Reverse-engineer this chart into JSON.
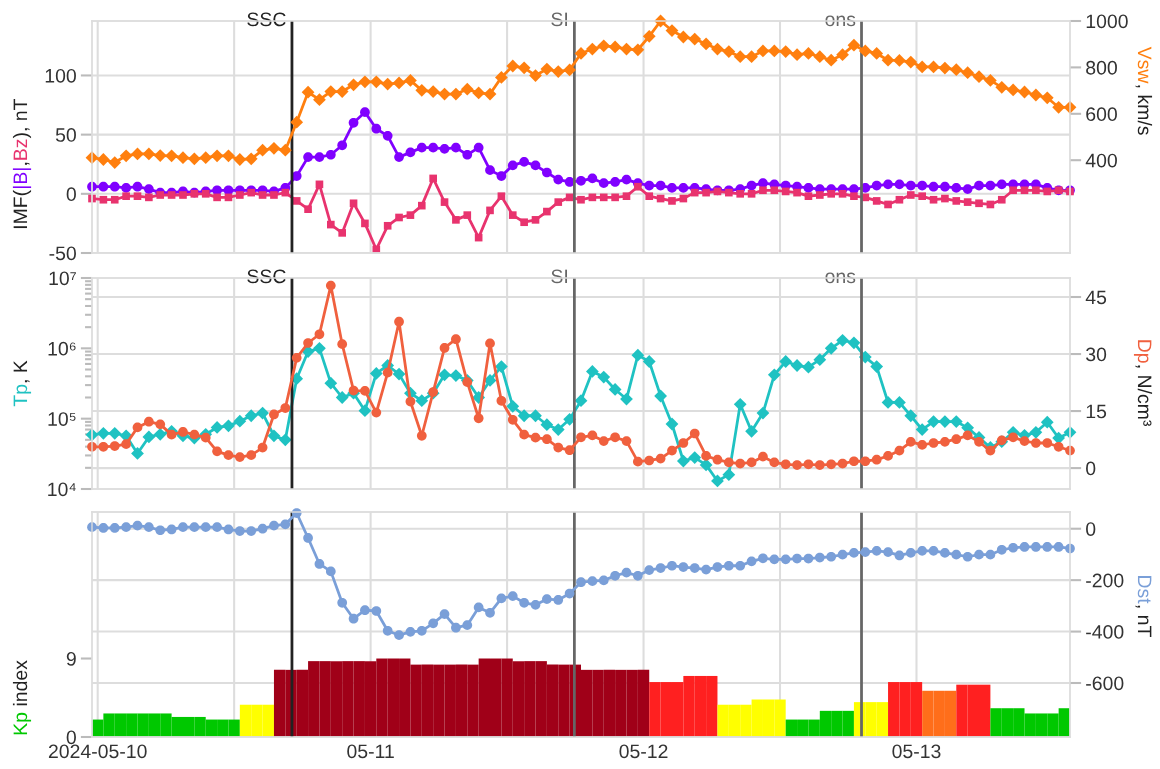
{
  "chart_data": [
    {
      "type": "line",
      "x": [
        "2024-05-09T23:30",
        "2024-05-10T00:30",
        "2024-05-10T01:30",
        "2024-05-10T02:30",
        "2024-05-10T03:30",
        "2024-05-10T04:30",
        "2024-05-10T05:30",
        "2024-05-10T06:30",
        "2024-05-10T07:30",
        "2024-05-10T08:30",
        "2024-05-10T09:30",
        "2024-05-10T10:30",
        "2024-05-10T11:30",
        "2024-05-10T12:30",
        "2024-05-10T13:30",
        "2024-05-10T14:30",
        "2024-05-10T15:30",
        "2024-05-10T16:30",
        "2024-05-10T17:30",
        "2024-05-10T18:30",
        "2024-05-10T19:30",
        "2024-05-10T20:30",
        "2024-05-10T21:30",
        "2024-05-10T22:30",
        "2024-05-10T23:30",
        "2024-05-11T00:30",
        "2024-05-11T01:30",
        "2024-05-11T02:30",
        "2024-05-11T03:30",
        "2024-05-11T04:30",
        "2024-05-11T05:30",
        "2024-05-11T06:30",
        "2024-05-11T07:30",
        "2024-05-11T08:30",
        "2024-05-11T09:30",
        "2024-05-11T10:30",
        "2024-05-11T11:30",
        "2024-05-11T12:30",
        "2024-05-11T13:30",
        "2024-05-11T14:30",
        "2024-05-11T15:30",
        "2024-05-11T16:30",
        "2024-05-11T17:30",
        "2024-05-11T18:30",
        "2024-05-11T19:30",
        "2024-05-11T20:30",
        "2024-05-11T21:30",
        "2024-05-11T22:30",
        "2024-05-11T23:30",
        "2024-05-12T00:30",
        "2024-05-12T01:30",
        "2024-05-12T02:30",
        "2024-05-12T03:30",
        "2024-05-12T04:30",
        "2024-05-12T05:30",
        "2024-05-12T06:30",
        "2024-05-12T07:30",
        "2024-05-12T08:30",
        "2024-05-12T09:30",
        "2024-05-12T10:30",
        "2024-05-12T11:30",
        "2024-05-12T12:30",
        "2024-05-12T13:30",
        "2024-05-12T14:30",
        "2024-05-12T15:30",
        "2024-05-12T16:30",
        "2024-05-12T17:30",
        "2024-05-12T18:30",
        "2024-05-12T19:30",
        "2024-05-12T20:30",
        "2024-05-12T21:30",
        "2024-05-12T22:30",
        "2024-05-12T23:30",
        "2024-05-13T00:30",
        "2024-05-13T01:30",
        "2024-05-13T02:30",
        "2024-05-13T03:30",
        "2024-05-13T04:30",
        "2024-05-13T05:30",
        "2024-05-13T06:30",
        "2024-05-13T07:30",
        "2024-05-13T08:30",
        "2024-05-13T09:30",
        "2024-05-13T10:30",
        "2024-05-13T11:30",
        "2024-05-13T12:30",
        "2024-05-13T13:30"
      ],
      "xlim": [
        "2024-05-09T23:30",
        "2024-05-13T13:30"
      ],
      "xticks": [
        "2024-05-10",
        "2024-05-10T12:00",
        "2024-05-11",
        "2024-05-11T12:00",
        "2024-05-12",
        "2024-05-12T12:00",
        "2024-05-13"
      ],
      "ylabel": [
        "IMF(",
        null,
        ",",
        null,
        "), nT"
      ],
      "y2label": [
        null,
        ", km/s"
      ],
      "ylim": [
        -50,
        146
      ],
      "yticks": [
        -50,
        0,
        50,
        100
      ],
      "y2lim": [
        0,
        1000
      ],
      "y2ticks": [
        400,
        600,
        800,
        1000
      ],
      "grid": [
        "x",
        "y"
      ],
      "tick_labels": "y",
      "ref_lines": [
        {
          "axis": "x",
          "value": "2024-05-10T17:05",
          "label": "SSC",
          "color": "#222222"
        },
        {
          "axis": "x",
          "value": "2024-05-11T17:55",
          "label": "SI",
          "color": "#666666"
        },
        {
          "axis": "x",
          "value": "2024-05-12T19:10",
          "label": "ons",
          "color": "#666666"
        }
      ],
      "series": [
        {
          "name": "|B|",
          "color": "#8000ff",
          "marker": "circle",
          "values": [
            6,
            6,
            6,
            5,
            6,
            4,
            1,
            1,
            2,
            1,
            2,
            3,
            3,
            3,
            3,
            3,
            2,
            5,
            15,
            31,
            31,
            33,
            41,
            60,
            69,
            55,
            49,
            31,
            35,
            39,
            39,
            38,
            39,
            33,
            39,
            20,
            15,
            24,
            27,
            24,
            18,
            12,
            10,
            11,
            13,
            9,
            10,
            12,
            9,
            7,
            7,
            5,
            5,
            5,
            4,
            3,
            3,
            4,
            7,
            9,
            8,
            7,
            6,
            5,
            4,
            4,
            4,
            4,
            5,
            7,
            8,
            8,
            7,
            7,
            6,
            6,
            5,
            4,
            7,
            7,
            8,
            8,
            8,
            8,
            5,
            3,
            3
          ]
        },
        {
          "name": "Bz",
          "color": "#e8336e",
          "marker": "square",
          "values": [
            -4,
            -5,
            -5,
            -2,
            -2,
            -3,
            -1,
            -1,
            -1,
            0,
            0,
            -3,
            -3,
            -1,
            1,
            -1,
            -1,
            1,
            -6,
            -13,
            8,
            -26,
            -33,
            -8,
            -25,
            -47,
            -27,
            -20,
            -18,
            -10,
            13,
            -7,
            -22,
            -18,
            -37,
            -14,
            -2,
            -18,
            -24,
            -22,
            -15,
            -7,
            -3,
            -5,
            -3,
            -3,
            -3,
            -2,
            6,
            -2,
            -4,
            -6,
            -4,
            1,
            1,
            2,
            1,
            0,
            0,
            3,
            3,
            2,
            1,
            -2,
            -1,
            0,
            0,
            -2,
            -3,
            -6,
            -9,
            -5,
            -1,
            -2,
            -5,
            -4,
            -6,
            -7,
            -8,
            -9,
            -5,
            3,
            3,
            3,
            2,
            3,
            2
          ]
        },
        {
          "name": "Vsw",
          "color": "#ff7f0e",
          "marker": "diamond",
          "axis": "y2",
          "values": [
            411,
            403,
            390,
            419,
            427,
            427,
            420,
            419,
            411,
            406,
            411,
            419,
            419,
            403,
            406,
            443,
            451,
            443,
            564,
            693,
            661,
            696,
            696,
            725,
            738,
            738,
            728,
            733,
            744,
            701,
            696,
            685,
            685,
            706,
            690,
            685,
            757,
            806,
            798,
            765,
            793,
            782,
            789,
            860,
            879,
            893,
            888,
            879,
            876,
            934,
            1000,
            959,
            931,
            922,
            901,
            879,
            868,
            846,
            846,
            871,
            871,
            868,
            855,
            860,
            846,
            831,
            855,
            896,
            871,
            860,
            831,
            830,
            823,
            802,
            802,
            797,
            790,
            777,
            760,
            744,
            714,
            703,
            694,
            681,
            669,
            628,
            628
          ]
        }
      ]
    },
    {
      "type": "line",
      "x": [
        "2024-05-09T23:30",
        "2024-05-10T00:30",
        "2024-05-10T01:30",
        "2024-05-10T02:30",
        "2024-05-10T03:30",
        "2024-05-10T04:30",
        "2024-05-10T05:30",
        "2024-05-10T06:30",
        "2024-05-10T07:30",
        "2024-05-10T08:30",
        "2024-05-10T09:30",
        "2024-05-10T10:30",
        "2024-05-10T11:30",
        "2024-05-10T12:30",
        "2024-05-10T13:30",
        "2024-05-10T14:30",
        "2024-05-10T15:30",
        "2024-05-10T16:30",
        "2024-05-10T17:30",
        "2024-05-10T18:30",
        "2024-05-10T19:30",
        "2024-05-10T20:30",
        "2024-05-10T21:30",
        "2024-05-10T22:30",
        "2024-05-10T23:30",
        "2024-05-11T00:30",
        "2024-05-11T01:30",
        "2024-05-11T02:30",
        "2024-05-11T03:30",
        "2024-05-11T04:30",
        "2024-05-11T05:30",
        "2024-05-11T06:30",
        "2024-05-11T07:30",
        "2024-05-11T08:30",
        "2024-05-11T09:30",
        "2024-05-11T10:30",
        "2024-05-11T11:30",
        "2024-05-11T12:30",
        "2024-05-11T13:30",
        "2024-05-11T14:30",
        "2024-05-11T15:30",
        "2024-05-11T16:30",
        "2024-05-11T17:30",
        "2024-05-11T18:30",
        "2024-05-11T19:30",
        "2024-05-11T20:30",
        "2024-05-11T21:30",
        "2024-05-11T22:30",
        "2024-05-11T23:30",
        "2024-05-12T00:30",
        "2024-05-12T01:30",
        "2024-05-12T02:30",
        "2024-05-12T03:30",
        "2024-05-12T04:30",
        "2024-05-12T05:30",
        "2024-05-12T06:30",
        "2024-05-12T07:30",
        "2024-05-12T08:30",
        "2024-05-12T09:30",
        "2024-05-12T10:30",
        "2024-05-12T11:30",
        "2024-05-12T12:30",
        "2024-05-12T13:30",
        "2024-05-12T14:30",
        "2024-05-12T15:30",
        "2024-05-12T16:30",
        "2024-05-12T17:30",
        "2024-05-12T18:30",
        "2024-05-12T19:30",
        "2024-05-12T20:30",
        "2024-05-12T21:30",
        "2024-05-12T22:30",
        "2024-05-12T23:30",
        "2024-05-13T00:30",
        "2024-05-13T01:30",
        "2024-05-13T02:30",
        "2024-05-13T03:30",
        "2024-05-13T04:30",
        "2024-05-13T05:30",
        "2024-05-13T06:30",
        "2024-05-13T07:30",
        "2024-05-13T08:30",
        "2024-05-13T09:30",
        "2024-05-13T10:30",
        "2024-05-13T11:30",
        "2024-05-13T12:30",
        "2024-05-13T13:30"
      ],
      "xlim": [
        "2024-05-09T23:30",
        "2024-05-13T13:30"
      ],
      "xticks": [
        "2024-05-10",
        "2024-05-10T12:00",
        "2024-05-11",
        "2024-05-11T12:00",
        "2024-05-12",
        "2024-05-12T12:00",
        "2024-05-13"
      ],
      "ylabel": [
        null,
        ", K"
      ],
      "y2label": [
        null,
        ", N/cm³"
      ],
      "log": "y",
      "ylim": [
        10000,
        10000000
      ],
      "yticks": [
        {
          "value": 10000,
          "label": "10⁴"
        },
        {
          "value": 100000,
          "label": "10⁵"
        },
        {
          "value": 1000000,
          "label": "10⁶"
        },
        {
          "value": 10000000,
          "label": "10⁷"
        }
      ],
      "y2lim": [
        -5.5,
        50
      ],
      "y2ticks": [
        0,
        15,
        30,
        45
      ],
      "grid": [
        "x",
        "y2"
      ],
      "tick_labels": "y",
      "ref_lines": [
        {
          "axis": "x",
          "value": "2024-05-10T17:05",
          "label": "SSC",
          "color": "#222222"
        },
        {
          "axis": "x",
          "value": "2024-05-11T17:55",
          "label": "SI",
          "color": "#666666"
        },
        {
          "axis": "x",
          "value": "2024-05-12T19:10",
          "label": "ons",
          "color": "#666666"
        }
      ],
      "series": [
        {
          "name": "Tp",
          "color": "#1fc2c2",
          "marker": "diamond",
          "values": [
            59000,
            62000,
            62000,
            57000,
            32000,
            55000,
            60000,
            66000,
            57000,
            53000,
            60000,
            75000,
            79000,
            92000,
            110000,
            120000,
            57000,
            50000,
            370000,
            900000,
            1000000,
            320000,
            200000,
            230000,
            130000,
            440000,
            570000,
            430000,
            230000,
            180000,
            230000,
            420000,
            410000,
            350000,
            200000,
            350000,
            550000,
            150000,
            110000,
            110000,
            82000,
            70000,
            98000,
            180000,
            470000,
            390000,
            260000,
            190000,
            800000,
            650000,
            210000,
            84000,
            25000,
            28000,
            22000,
            13000,
            16000,
            160000,
            66000,
            120000,
            420000,
            650000,
            570000,
            540000,
            690000,
            1000000,
            1300000,
            1200000,
            750000,
            550000,
            170000,
            170000,
            110000,
            70000,
            91000,
            91000,
            91000,
            74000,
            54000,
            39000,
            47000,
            64000,
            58000,
            64000,
            89000,
            53000,
            64000
          ]
        },
        {
          "name": "Dp",
          "color": "#f0603e",
          "marker": "circle",
          "axis": "y2",
          "values": [
            5.6,
            5.6,
            5.8,
            6.3,
            10.7,
            12.2,
            11.5,
            8.8,
            9.5,
            8.8,
            8,
            4.4,
            3.4,
            2.9,
            3.4,
            5.4,
            14.1,
            15.8,
            29,
            32.9,
            35.2,
            48,
            32.6,
            20.4,
            20.3,
            14.6,
            25.1,
            38.5,
            17.5,
            8.5,
            20,
            31.6,
            33.9,
            22.6,
            13.1,
            32.8,
            17.7,
            12.7,
            8.8,
            8,
            7.6,
            5.4,
            4.7,
            8.1,
            8.6,
            7.1,
            8.1,
            7.1,
            1.7,
            2,
            2.5,
            4.6,
            6.6,
            9.1,
            3.2,
            2.2,
            1.5,
            1.2,
            1.5,
            3,
            1.5,
            1,
            0.8,
            1,
            0.8,
            1,
            1.2,
            1.8,
            1.8,
            2.2,
            3.2,
            4.6,
            6.9,
            6.1,
            6.6,
            6.9,
            7.6,
            8.6,
            6.9,
            4.6,
            7.3,
            8.1,
            7.1,
            6.6,
            6.6,
            5.6,
            4.6
          ]
        }
      ]
    },
    {
      "type": "line",
      "x": [
        "2024-05-09T23:30",
        "2024-05-10T00:30",
        "2024-05-10T01:30",
        "2024-05-10T02:30",
        "2024-05-10T03:30",
        "2024-05-10T04:30",
        "2024-05-10T05:30",
        "2024-05-10T06:30",
        "2024-05-10T07:30",
        "2024-05-10T08:30",
        "2024-05-10T09:30",
        "2024-05-10T10:30",
        "2024-05-10T11:30",
        "2024-05-10T12:30",
        "2024-05-10T13:30",
        "2024-05-10T14:30",
        "2024-05-10T15:30",
        "2024-05-10T16:30",
        "2024-05-10T17:30",
        "2024-05-10T18:30",
        "2024-05-10T19:30",
        "2024-05-10T20:30",
        "2024-05-10T21:30",
        "2024-05-10T22:30",
        "2024-05-10T23:30",
        "2024-05-11T00:30",
        "2024-05-11T01:30",
        "2024-05-11T02:30",
        "2024-05-11T03:30",
        "2024-05-11T04:30",
        "2024-05-11T05:30",
        "2024-05-11T06:30",
        "2024-05-11T07:30",
        "2024-05-11T08:30",
        "2024-05-11T09:30",
        "2024-05-11T10:30",
        "2024-05-11T11:30",
        "2024-05-11T12:30",
        "2024-05-11T13:30",
        "2024-05-11T14:30",
        "2024-05-11T15:30",
        "2024-05-11T16:30",
        "2024-05-11T17:30",
        "2024-05-11T18:30",
        "2024-05-11T19:30",
        "2024-05-11T20:30",
        "2024-05-11T21:30",
        "2024-05-11T22:30",
        "2024-05-11T23:30",
        "2024-05-12T00:30",
        "2024-05-12T01:30",
        "2024-05-12T02:30",
        "2024-05-12T03:30",
        "2024-05-12T04:30",
        "2024-05-12T05:30",
        "2024-05-12T06:30",
        "2024-05-12T07:30",
        "2024-05-12T08:30",
        "2024-05-12T09:30",
        "2024-05-12T10:30",
        "2024-05-12T11:30",
        "2024-05-12T12:30",
        "2024-05-12T13:30",
        "2024-05-12T14:30",
        "2024-05-12T15:30",
        "2024-05-12T16:30",
        "2024-05-12T17:30",
        "2024-05-12T18:30",
        "2024-05-12T19:30",
        "2024-05-12T20:30",
        "2024-05-12T21:30",
        "2024-05-12T22:30",
        "2024-05-12T23:30",
        "2024-05-13T00:30",
        "2024-05-13T01:30",
        "2024-05-13T02:30",
        "2024-05-13T03:30",
        "2024-05-13T04:30",
        "2024-05-13T05:30",
        "2024-05-13T06:30",
        "2024-05-13T07:30",
        "2024-05-13T08:30",
        "2024-05-13T09:30",
        "2024-05-13T10:30",
        "2024-05-13T11:30",
        "2024-05-13T12:30",
        "2024-05-13T13:30"
      ],
      "xlim": [
        "2024-05-09T23:30",
        "2024-05-13T13:30"
      ],
      "xticks": [
        {
          "value": "2024-05-10",
          "label": "2024-05-10"
        },
        {
          "value": "2024-05-10T12:00",
          "label": null
        },
        {
          "value": "2024-05-11",
          "label": "05-11"
        },
        {
          "value": "2024-05-11T12:00",
          "label": null
        },
        {
          "value": "2024-05-12",
          "label": "05-12"
        },
        {
          "value": "2024-05-12T12:00",
          "label": null
        },
        {
          "value": "2024-05-13",
          "label": "05-13"
        }
      ],
      "ylabel": [
        null,
        " index"
      ],
      "y2label": [
        null,
        ", nT"
      ],
      "ylim": [
        0,
        25.8
      ],
      "yticks": [
        0,
        9
      ],
      "y2lim": [
        -810,
        65
      ],
      "y2ticks": [
        -600,
        -400,
        -200,
        0
      ],
      "grid": [
        "x",
        "y2"
      ],
      "ref_lines": [
        {
          "axis": "x",
          "value": "2024-05-10T17:05",
          "color": "#222222"
        },
        {
          "axis": "x",
          "value": "2024-05-11T17:55",
          "color": "#666666"
        },
        {
          "axis": "x",
          "value": "2024-05-12T19:10",
          "color": "#666666"
        }
      ],
      "series": [
        {
          "name": "Kp",
          "type": "bar",
          "x": [
            "2024-05-10T00:00",
            "2024-05-10T01:00",
            "2024-05-10T02:00",
            "2024-05-10T03:00",
            "2024-05-10T04:00",
            "2024-05-10T05:00",
            "2024-05-10T06:00",
            "2024-05-10T07:00",
            "2024-05-10T08:00",
            "2024-05-10T09:00",
            "2024-05-10T10:00",
            "2024-05-10T11:00",
            "2024-05-10T12:00",
            "2024-05-10T13:00",
            "2024-05-10T14:00",
            "2024-05-10T15:00",
            "2024-05-10T16:00",
            "2024-05-10T17:00",
            "2024-05-10T18:00",
            "2024-05-10T19:00",
            "2024-05-10T20:00",
            "2024-05-10T21:00",
            "2024-05-10T22:00",
            "2024-05-10T23:00",
            "2024-05-11T00:00",
            "2024-05-11T01:00",
            "2024-05-11T02:00",
            "2024-05-11T03:00",
            "2024-05-11T04:00",
            "2024-05-11T05:00",
            "2024-05-11T06:00",
            "2024-05-11T07:00",
            "2024-05-11T08:00",
            "2024-05-11T09:00",
            "2024-05-11T10:00",
            "2024-05-11T11:00",
            "2024-05-11T12:00",
            "2024-05-11T13:00",
            "2024-05-11T14:00",
            "2024-05-11T15:00",
            "2024-05-11T16:00",
            "2024-05-11T17:00",
            "2024-05-11T18:00",
            "2024-05-11T19:00",
            "2024-05-11T20:00",
            "2024-05-11T21:00",
            "2024-05-11T22:00",
            "2024-05-11T23:00",
            "2024-05-12T00:00",
            "2024-05-12T01:00",
            "2024-05-12T02:00",
            "2024-05-12T03:00",
            "2024-05-12T04:00",
            "2024-05-12T05:00",
            "2024-05-12T06:00",
            "2024-05-12T07:00",
            "2024-05-12T08:00",
            "2024-05-12T09:00",
            "2024-05-12T10:00",
            "2024-05-12T11:00",
            "2024-05-12T12:00",
            "2024-05-12T13:00",
            "2024-05-12T14:00",
            "2024-05-12T15:00",
            "2024-05-12T16:00",
            "2024-05-12T17:00",
            "2024-05-12T18:00",
            "2024-05-12T19:00",
            "2024-05-12T20:00",
            "2024-05-12T21:00",
            "2024-05-12T22:00",
            "2024-05-12T23:00",
            "2024-05-13T00:00",
            "2024-05-13T01:00",
            "2024-05-13T02:00",
            "2024-05-13T03:00",
            "2024-05-13T04:00",
            "2024-05-13T05:00",
            "2024-05-13T06:00",
            "2024-05-13T07:00",
            "2024-05-13T08:00",
            "2024-05-13T09:00",
            "2024-05-13T10:00",
            "2024-05-13T11:00",
            "2024-05-13T12:00",
            "2024-05-13T13:00"
          ],
          "values": [
            2,
            2.7,
            2.7,
            2.7,
            2.7,
            2.7,
            2.7,
            2.3,
            2.3,
            2.3,
            2,
            2,
            2,
            3.7,
            3.7,
            3.7,
            7.7,
            7.7,
            7.7,
            8.7,
            8.7,
            8.7,
            8.7,
            8.7,
            8.7,
            9,
            9,
            9,
            8.3,
            8.3,
            8.3,
            8.3,
            8.3,
            8.3,
            9,
            9,
            9,
            8.7,
            8.7,
            8.7,
            8.3,
            8.3,
            8.3,
            7.7,
            7.7,
            7.7,
            7.7,
            7.7,
            7.7,
            6.3,
            6.3,
            6.3,
            7,
            7,
            7,
            3.7,
            3.7,
            3.7,
            4.3,
            4.3,
            4.3,
            2,
            2,
            2,
            3,
            3,
            3,
            4,
            4,
            4,
            6.3,
            6.3,
            6.3,
            5.3,
            5.3,
            5.3,
            6,
            6,
            6,
            3.3,
            3.3,
            3.3,
            2.7,
            2.7,
            2.7,
            3.3
          ],
          "colors": [
            "#00c800",
            "#00c800",
            "#00c800",
            "#00c800",
            "#00c800",
            "#00c800",
            "#00c800",
            "#00c800",
            "#00c800",
            "#00c800",
            "#00c800",
            "#00c800",
            "#00c800",
            "#ffff00",
            "#ffff00",
            "#ffff00",
            "#a00018",
            "#a00018",
            "#a00018",
            "#a00018",
            "#a00018",
            "#a00018",
            "#a00018",
            "#a00018",
            "#a00018",
            "#a00018",
            "#a00018",
            "#a00018",
            "#a00018",
            "#a00018",
            "#a00018",
            "#a00018",
            "#a00018",
            "#a00018",
            "#a00018",
            "#a00018",
            "#a00018",
            "#a00018",
            "#a00018",
            "#a00018",
            "#a00018",
            "#a00018",
            "#a00018",
            "#a00018",
            "#a00018",
            "#a00018",
            "#a00018",
            "#a00018",
            "#a00018",
            "#ff2020",
            "#ff2020",
            "#ff2020",
            "#ff2020",
            "#ff2020",
            "#ff2020",
            "#ffff00",
            "#ffff00",
            "#ffff00",
            "#ffff00",
            "#ffff00",
            "#ffff00",
            "#00c800",
            "#00c800",
            "#00c800",
            "#00c800",
            "#00c800",
            "#00c800",
            "#ffff00",
            "#ffff00",
            "#ffff00",
            "#ff2020",
            "#ff2020",
            "#ff2020",
            "#ff6e1a",
            "#ff6e1a",
            "#ff6e1a",
            "#ff2020",
            "#ff2020",
            "#ff2020",
            "#00c800",
            "#00c800",
            "#00c800",
            "#00c800",
            "#00c800",
            "#00c800",
            "#00c800"
          ]
        },
        {
          "name": "Dst",
          "type": "line",
          "color": "#7a9fd8",
          "marker": "circle",
          "axis": "y2",
          "values": [
            6,
            3,
            3,
            6,
            12,
            6,
            -6,
            -3,
            6,
            6,
            6,
            6,
            -3,
            -9,
            -9,
            0,
            12,
            17,
            61,
            -36,
            -137,
            -166,
            -288,
            -350,
            -317,
            -320,
            -397,
            -414,
            -401,
            -397,
            -368,
            -332,
            -385,
            -375,
            -306,
            -327,
            -271,
            -262,
            -288,
            -296,
            -274,
            -277,
            -252,
            -208,
            -204,
            -201,
            -183,
            -171,
            -183,
            -161,
            -153,
            -144,
            -149,
            -153,
            -159,
            -149,
            -144,
            -144,
            -127,
            -115,
            -119,
            -119,
            -116,
            -116,
            -112,
            -109,
            -101,
            -94,
            -91,
            -86,
            -91,
            -104,
            -94,
            -86,
            -86,
            -94,
            -101,
            -109,
            -101,
            -101,
            -82,
            -74,
            -71,
            -71,
            -71,
            -71,
            -77
          ]
        }
      ]
    }
  ]
}
